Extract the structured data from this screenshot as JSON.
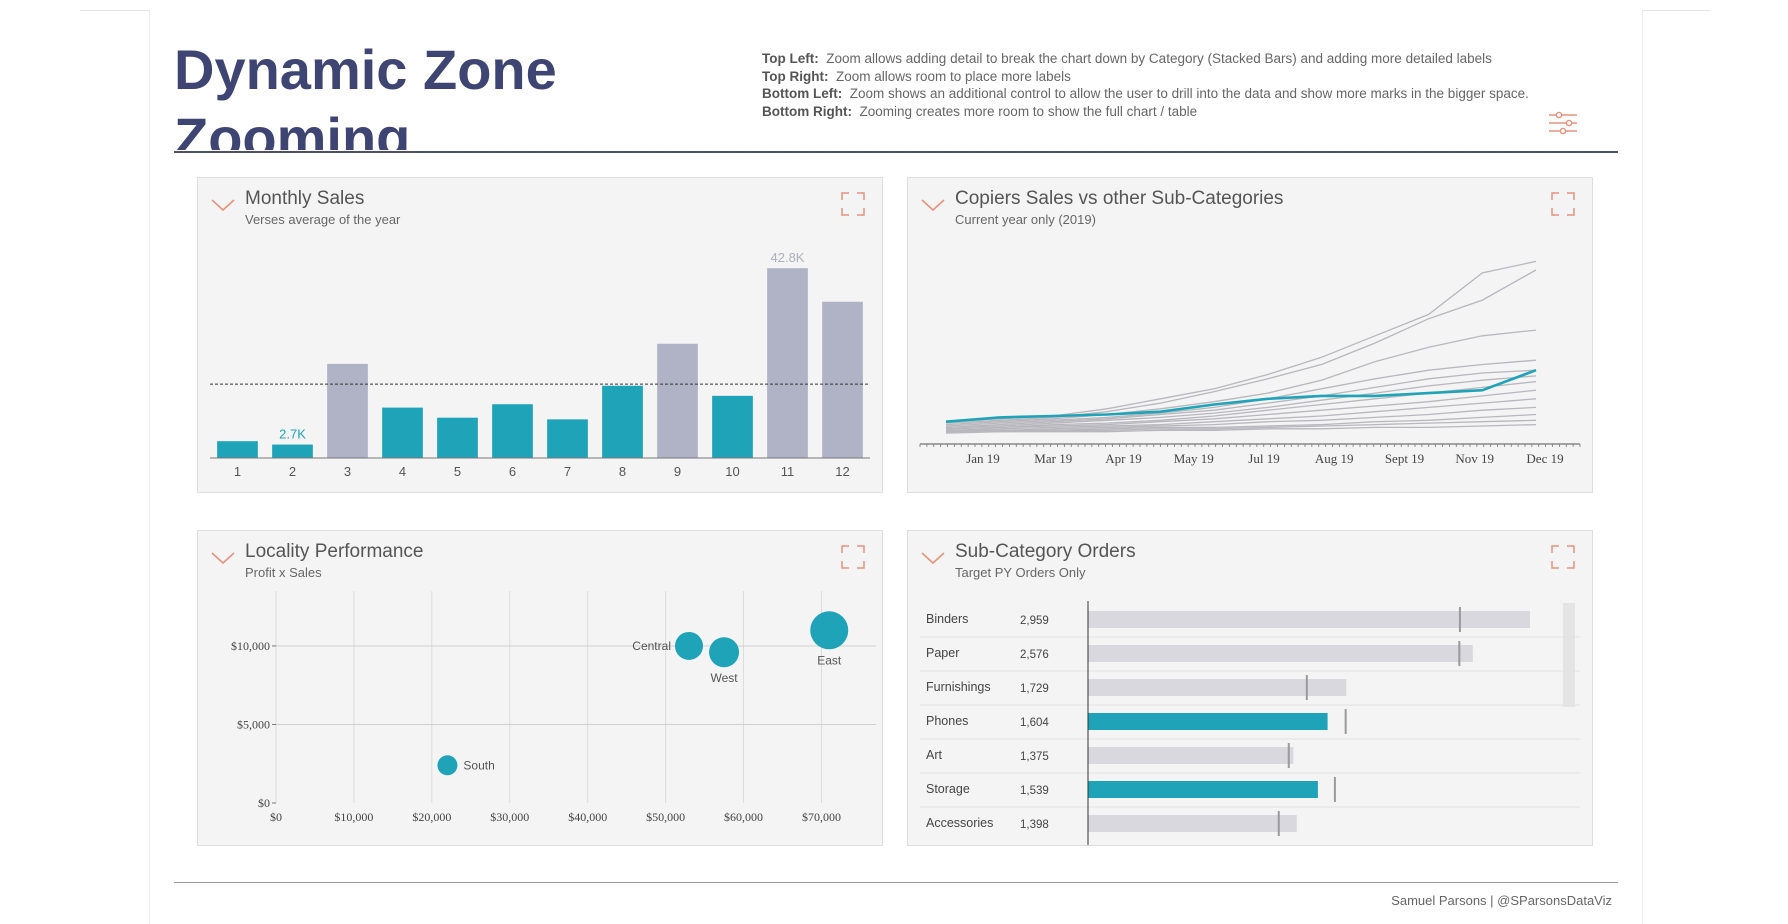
{
  "header": {
    "title": "Dynamic Zone Zooming",
    "notes": [
      {
        "label": "Top Left:",
        "text": "Zoom allows adding detail to break the chart down by Category (Stacked Bars) and adding more detailed labels"
      },
      {
        "label": "Top Right:",
        "text": "Zoom allows room to place more labels"
      },
      {
        "label": "Bottom Left:",
        "text": "Zoom shows an additional control to allow the user to drill into the data and show more marks in the bigger space."
      },
      {
        "label": "Bottom Right:",
        "text": "Zooming creates more room to show the full chart / table"
      }
    ],
    "filter_icon": "sliders-icon"
  },
  "colors": {
    "teal": "#1fa3b8",
    "grey_bar": "#b0b2c6",
    "accent": "#e8927c",
    "title": "#3e4572",
    "grey_line": "#b7b7bd"
  },
  "cards": {
    "monthly": {
      "title": "Monthly Sales",
      "subtitle": "Verses average of the year"
    },
    "copiers": {
      "title": "Copiers Sales vs other Sub-Categories",
      "subtitle": "Current year only (2019)"
    },
    "locality": {
      "title": "Locality Performance",
      "subtitle": "Profit x Sales"
    },
    "subcat": {
      "title": "Sub-Category Orders",
      "subtitle": "Target PY Orders Only"
    }
  },
  "chart_data": [
    {
      "id": "monthly",
      "type": "bar",
      "categories": [
        "1",
        "2",
        "3",
        "4",
        "5",
        "6",
        "7",
        "8",
        "9",
        "10",
        "11",
        "12"
      ],
      "values": [
        1.0,
        0.8,
        5.6,
        3.0,
        2.4,
        3.2,
        2.3,
        4.3,
        6.8,
        3.7,
        11.3,
        9.3
      ],
      "above_average": [
        false,
        false,
        true,
        false,
        false,
        false,
        false,
        false,
        true,
        false,
        true,
        true
      ],
      "average": 4.4,
      "data_labels": [
        {
          "index": 1,
          "text": "2.7K"
        },
        {
          "index": 10,
          "text": "42.8K"
        }
      ],
      "ylim": [
        0,
        12.5
      ],
      "title": "Monthly Sales"
    },
    {
      "id": "copiers",
      "type": "line",
      "x_ticks": [
        "Jan 19",
        "Mar 19",
        "Apr 19",
        "May 19",
        "Jul 19",
        "Aug 19",
        "Sept 19",
        "Nov 19",
        "Dec 19"
      ],
      "highlight_series": [
        1.0,
        1.3,
        1.4,
        1.5,
        1.7,
        2.2,
        2.6,
        2.8,
        2.8,
        3.0,
        3.2,
        4.6
      ],
      "other_series": [
        [
          1.0,
          1.2,
          1.4,
          1.9,
          2.6,
          3.3,
          4.3,
          5.5,
          7.0,
          8.5,
          11.4,
          12.2
        ],
        [
          0.9,
          1.1,
          1.3,
          1.7,
          2.3,
          3.1,
          4.0,
          5.0,
          6.5,
          8.2,
          9.5,
          11.6
        ],
        [
          0.8,
          1.0,
          1.2,
          1.5,
          1.9,
          2.4,
          3.0,
          3.9,
          5.2,
          6.2,
          7.0,
          7.4
        ],
        [
          0.7,
          0.9,
          1.1,
          1.3,
          1.6,
          2.0,
          2.6,
          3.3,
          4.0,
          4.6,
          5.0,
          5.3
        ],
        [
          0.6,
          0.8,
          1.0,
          1.2,
          1.5,
          1.8,
          2.3,
          2.8,
          3.4,
          4.0,
          4.4,
          4.6
        ],
        [
          0.6,
          0.7,
          0.9,
          1.1,
          1.3,
          1.6,
          2.0,
          2.5,
          3.0,
          3.5,
          3.9,
          4.2
        ],
        [
          0.5,
          0.6,
          0.8,
          0.9,
          1.1,
          1.4,
          1.8,
          2.2,
          2.6,
          3.0,
          3.4,
          3.8
        ],
        [
          0.5,
          0.6,
          0.7,
          0.8,
          1.0,
          1.2,
          1.5,
          1.8,
          2.1,
          2.4,
          2.8,
          3.2
        ],
        [
          0.4,
          0.5,
          0.6,
          0.7,
          0.8,
          1.0,
          1.2,
          1.4,
          1.7,
          2.0,
          2.3,
          2.6
        ],
        [
          0.4,
          0.4,
          0.5,
          0.6,
          0.7,
          0.8,
          1.0,
          1.1,
          1.3,
          1.5,
          1.8,
          2.0
        ],
        [
          0.3,
          0.4,
          0.4,
          0.5,
          0.6,
          0.6,
          0.7,
          0.8,
          1.0,
          1.1,
          1.3,
          1.5
        ],
        [
          0.3,
          0.3,
          0.4,
          0.4,
          0.5,
          0.5,
          0.6,
          0.7,
          0.8,
          0.9,
          1.0,
          1.1
        ],
        [
          0.2,
          0.3,
          0.3,
          0.3,
          0.4,
          0.4,
          0.5,
          0.5,
          0.6,
          0.6,
          0.7,
          0.8
        ]
      ],
      "ylim": [
        0,
        13
      ],
      "title": "Copiers Sales vs other Sub-Categories"
    },
    {
      "id": "locality",
      "type": "scatter",
      "points": [
        {
          "label": "Central",
          "x": 53000,
          "y": 10000,
          "size": 14
        },
        {
          "label": "West",
          "x": 57500,
          "y": 9600,
          "size": 15
        },
        {
          "label": "East",
          "x": 71000,
          "y": 11000,
          "size": 19
        },
        {
          "label": "South",
          "x": 22000,
          "y": 2400,
          "size": 10
        }
      ],
      "x_ticks": [
        "$0",
        "$10,000",
        "$20,000",
        "$30,000",
        "$40,000",
        "$50,000",
        "$60,000",
        "$70,000"
      ],
      "y_ticks": [
        "$0",
        "$5,000",
        "$10,000"
      ],
      "xlim": [
        0,
        77000
      ],
      "ylim": [
        0,
        13500
      ],
      "title": "Locality Performance"
    },
    {
      "id": "subcat",
      "type": "bar",
      "orientation": "horizontal",
      "rows": [
        {
          "name": "Binders",
          "value_label": "2,959",
          "value": 2959,
          "target": 2490,
          "highlight": false
        },
        {
          "name": "Paper",
          "value_label": "2,576",
          "value": 2576,
          "target": 2486,
          "highlight": false
        },
        {
          "name": "Furnishings",
          "value_label": "1,729",
          "value": 1729,
          "target": 1465,
          "highlight": false
        },
        {
          "name": "Phones",
          "value_label": "1,604",
          "value": 1604,
          "target": 1725,
          "highlight": true
        },
        {
          "name": "Art",
          "value_label": "1,375",
          "value": 1375,
          "target": 1344,
          "highlight": false
        },
        {
          "name": "Storage",
          "value_label": "1,539",
          "value": 1539,
          "target": 1653,
          "highlight": true
        },
        {
          "name": "Accessories",
          "value_label": "1,398",
          "value": 1398,
          "target": 1277,
          "highlight": false
        }
      ],
      "xmax": 3180,
      "title": "Sub-Category Orders"
    }
  ],
  "footer": {
    "credit": "Samuel Parsons | @SParsonsDataViz"
  }
}
